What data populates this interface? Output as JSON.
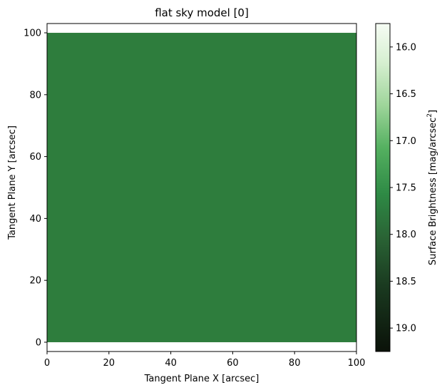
{
  "chart_data": {
    "type": "heatmap",
    "title": "flat sky model [0]",
    "xlabel": "Tangent Plane X [arcsec]",
    "ylabel": "Tangent Plane Y [arcsec]",
    "xlim": [
      0,
      100
    ],
    "ylim": [
      -3,
      103
    ],
    "x_ticks": [
      0,
      20,
      40,
      60,
      80,
      100
    ],
    "y_ticks": [
      0,
      20,
      40,
      60,
      80,
      100
    ],
    "image_extent": {
      "x": [
        0,
        100
      ],
      "y": [
        0,
        100
      ]
    },
    "image_value": 17.6,
    "image_color": "#2e7d3d",
    "grid": false,
    "colorbar": {
      "label": "Surface Brightness [mag/arcsec",
      "label_superscript": "2",
      "label_suffix": "]",
      "range": [
        15.75,
        19.25
      ],
      "inverted": true,
      "ticks": [
        "16.0",
        "16.5",
        "17.0",
        "17.5",
        "18.0",
        "18.5",
        "19.0"
      ],
      "colormap": "greens",
      "color_bright": "#f6fcf4",
      "color_dark": "#0b1209"
    }
  }
}
